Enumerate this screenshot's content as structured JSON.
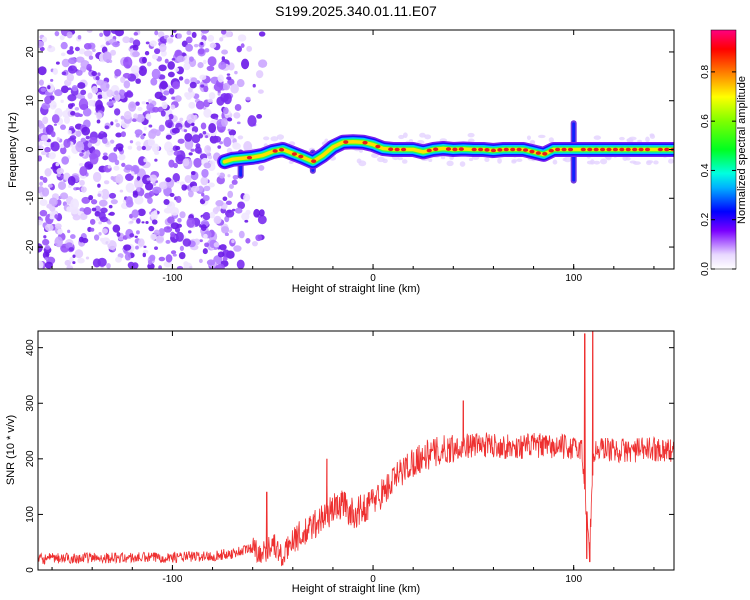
{
  "title": "S199.2025.340.01.11.E07",
  "colors": {
    "snr_line": "#ee3030",
    "track_core": "#e81c1c",
    "speckle": "#7a2cf0",
    "axis": "#000000"
  },
  "chart_data": [
    {
      "type": "heatmap",
      "xlabel": "Height of straight line (km)",
      "ylabel": "Frequency (Hz)",
      "xlim": [
        -167,
        150
      ],
      "ylim": [
        -24.5,
        24.5
      ],
      "xticks": [
        -100,
        0,
        100
      ],
      "xtick_labels": [
        "-100",
        "0",
        "100"
      ],
      "yticks": [
        -20,
        -10,
        0,
        10,
        20
      ],
      "ytick_labels": [
        "-20",
        "-10",
        "0",
        "10",
        "20"
      ],
      "colorbar": {
        "label": "Normalized spectral amplitude",
        "range": [
          0,
          0.97
        ],
        "ticks": [
          0.0,
          0.2,
          0.4,
          0.6,
          0.8
        ],
        "tick_labels": [
          "0.0",
          "0.2",
          "0.4",
          "0.6",
          "0.8"
        ]
      },
      "noise_region_km": [
        -167,
        -55
      ],
      "track": {
        "x": [
          -74,
          -70,
          -65,
          -60,
          -55,
          -50,
          -45,
          -40,
          -35,
          -30,
          -25,
          -20,
          -15,
          -10,
          -5,
          0,
          5,
          10,
          15,
          20,
          25,
          30,
          35,
          40,
          45,
          50,
          55,
          60,
          65,
          70,
          75,
          80,
          85,
          90,
          95,
          100,
          105,
          110,
          115,
          120,
          125,
          130,
          135,
          140,
          145,
          150
        ],
        "y": [
          -2.5,
          -2,
          -1.8,
          -1.6,
          -1.2,
          -0.4,
          0,
          -0.8,
          -1.6,
          -2.5,
          -1.2,
          0.5,
          1.5,
          1.6,
          1.5,
          1.0,
          0.2,
          0,
          0,
          0,
          -0.5,
          0,
          0.2,
          0,
          0.1,
          0,
          0,
          -0.2,
          0,
          0,
          0,
          -0.5,
          -1.0,
          0,
          0,
          0,
          0,
          0,
          0,
          0,
          0,
          0,
          0,
          0,
          0,
          0
        ]
      },
      "disturbances": [
        {
          "x": -66,
          "y_range": [
            -6,
            0
          ]
        },
        {
          "x": -30,
          "y_range": [
            -5,
            0
          ]
        },
        {
          "x": 100,
          "y_range": [
            -7,
            6
          ]
        }
      ]
    },
    {
      "type": "line",
      "xlabel": "Height of straight line (km)",
      "ylabel": "SNR (10 * v/v)",
      "xlim": [
        -167,
        150
      ],
      "ylim": [
        0,
        430
      ],
      "xticks": [
        -100,
        0,
        100
      ],
      "xtick_labels": [
        "-100",
        "0",
        "100"
      ],
      "yticks": [
        0,
        100,
        200,
        300,
        400
      ],
      "ytick_labels": [
        "0",
        "100",
        "200",
        "300",
        "400"
      ],
      "series": [
        {
          "name": "SNR",
          "x": [
            -167,
            -140,
            -120,
            -100,
            -80,
            -70,
            -60,
            -55,
            -50,
            -45,
            -40,
            -35,
            -30,
            -25,
            -20,
            -15,
            -10,
            -5,
            0,
            5,
            10,
            15,
            20,
            25,
            30,
            40,
            50,
            60,
            70,
            80,
            90,
            95,
            100,
            104,
            106,
            108,
            110,
            115,
            120,
            130,
            140,
            150
          ],
          "y": [
            20,
            22,
            22,
            23,
            25,
            30,
            40,
            30,
            50,
            20,
            60,
            60,
            80,
            95,
            110,
            120,
            100,
            110,
            125,
            140,
            160,
            180,
            195,
            205,
            210,
            220,
            225,
            225,
            220,
            225,
            220,
            222,
            218,
            220,
            120,
            50,
            210,
            220,
            215,
            215,
            218,
            215
          ],
          "spikes": [
            {
              "x": -53,
              "y": 140
            },
            {
              "x": -23,
              "y": 200
            },
            {
              "x": 45,
              "y": 305
            },
            {
              "x": 105.5,
              "y": 425
            },
            {
              "x": 106.5,
              "y": 20
            },
            {
              "x": 109.5,
              "y": 430
            },
            {
              "x": 108,
              "y": 15
            }
          ],
          "noise_amplitude": 14
        }
      ]
    }
  ]
}
